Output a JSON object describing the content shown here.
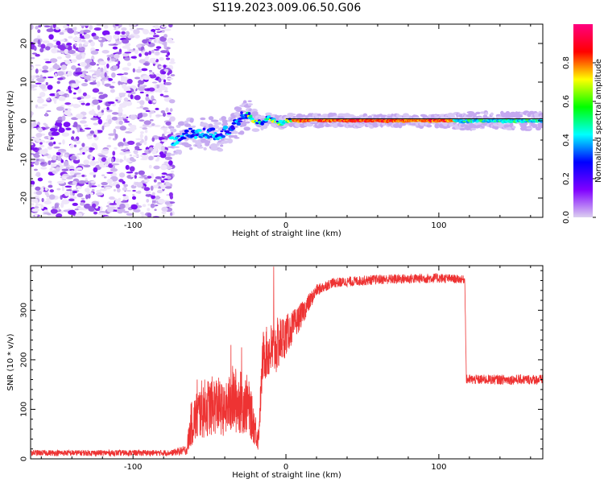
{
  "title": "S119.2023.009.06.50.G06",
  "chart_data": [
    {
      "type": "heatmap",
      "xlabel": "Height of straight line (km)",
      "ylabel": "Frequency (Hz)",
      "xlim": [
        -167,
        168
      ],
      "ylim": [
        -25,
        25
      ],
      "xticks": [
        -100,
        0,
        100
      ],
      "yticks": [
        -20,
        -10,
        0,
        10,
        20
      ],
      "colorbar": {
        "label": "Normalized spectral amplitude",
        "range": [
          0,
          1
        ],
        "ticks": [
          0.0,
          0.2,
          0.4,
          0.6,
          0.8
        ],
        "tick_labels": [
          "0.0",
          "0.2",
          "0.4",
          "0.6",
          "0.8"
        ],
        "colormap": [
          "#dcd0f0",
          "#8000ff",
          "#0000ff",
          "#00ffff",
          "#00ff00",
          "#ffff00",
          "#ff0000",
          "#ff0080"
        ]
      },
      "noise_region_x": [
        -167,
        -74
      ],
      "frequency_track": [
        {
          "x": -75,
          "y": -5.5
        },
        {
          "x": -70,
          "y": -4.5
        },
        {
          "x": -65,
          "y": -3.5
        },
        {
          "x": -60,
          "y": -3.0
        },
        {
          "x": -55,
          "y": -3.5
        },
        {
          "x": -50,
          "y": -3.0
        },
        {
          "x": -45,
          "y": -4.0
        },
        {
          "x": -40,
          "y": -3.0
        },
        {
          "x": -35,
          "y": -1.5
        },
        {
          "x": -30,
          "y": 0.5
        },
        {
          "x": -27,
          "y": 2.0
        },
        {
          "x": -24,
          "y": 1.5
        },
        {
          "x": -20,
          "y": -0.5
        },
        {
          "x": -15,
          "y": -0.5
        },
        {
          "x": -12,
          "y": 0.8
        },
        {
          "x": -8,
          "y": 0.0
        },
        {
          "x": -3,
          "y": -0.7
        },
        {
          "x": 2,
          "y": 0.3
        },
        {
          "x": 8,
          "y": 0.0
        },
        {
          "x": 20,
          "y": 0.1
        },
        {
          "x": 60,
          "y": 0.0
        },
        {
          "x": 100,
          "y": 0.0
        },
        {
          "x": 168,
          "y": 0.0
        }
      ],
      "reference_line_y": 0.5,
      "reference_line_x": [
        0,
        168
      ]
    },
    {
      "type": "line",
      "xlabel": "Height of straight line (km)",
      "ylabel": "SNR (10 * v/v)",
      "xlim": [
        -167,
        168
      ],
      "ylim": [
        0,
        390
      ],
      "xticks": [
        -100,
        0,
        100
      ],
      "yticks": [
        0,
        100,
        200,
        300
      ],
      "series": [
        {
          "color": "#ee3333",
          "envelope": [
            {
              "x": -167,
              "mean": 12,
              "amp": 6
            },
            {
              "x": -75,
              "mean": 12,
              "amp": 6
            },
            {
              "x": -65,
              "mean": 18,
              "amp": 10
            },
            {
              "x": -62,
              "mean": 70,
              "amp": 45
            },
            {
              "x": -55,
              "mean": 100,
              "amp": 60
            },
            {
              "x": -45,
              "mean": 110,
              "amp": 60
            },
            {
              "x": -40,
              "mean": 95,
              "amp": 50
            },
            {
              "x": -35,
              "mean": 120,
              "amp": 70
            },
            {
              "x": -25,
              "mean": 110,
              "amp": 60
            },
            {
              "x": -18,
              "mean": 40,
              "amp": 25
            },
            {
              "x": -15,
              "mean": 210,
              "amp": 50
            },
            {
              "x": -8,
              "mean": 220,
              "amp": 60
            },
            {
              "x": -3,
              "mean": 240,
              "amp": 50
            },
            {
              "x": 3,
              "mean": 260,
              "amp": 35
            },
            {
              "x": 10,
              "mean": 290,
              "amp": 25
            },
            {
              "x": 20,
              "mean": 340,
              "amp": 12
            },
            {
              "x": 30,
              "mean": 355,
              "amp": 10
            },
            {
              "x": 60,
              "mean": 362,
              "amp": 10
            },
            {
              "x": 100,
              "mean": 365,
              "amp": 10
            },
            {
              "x": 117,
              "mean": 362,
              "amp": 8
            },
            {
              "x": 118,
              "mean": 160,
              "amp": 10
            },
            {
              "x": 168,
              "mean": 160,
              "amp": 10
            }
          ],
          "spikes": [
            {
              "x": -8,
              "y": 388
            },
            {
              "x": -36,
              "y": 230
            },
            {
              "x": -29,
              "y": 225
            },
            {
              "x": -58,
              "y": 160
            }
          ]
        }
      ]
    }
  ]
}
